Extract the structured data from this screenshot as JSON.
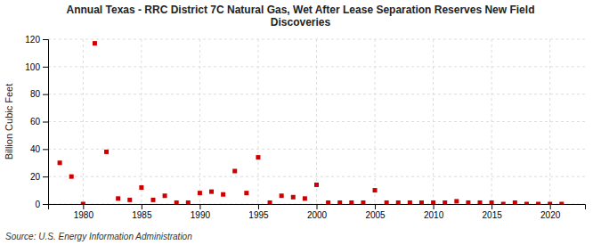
{
  "chart_data": {
    "type": "scatter",
    "title": "Annual Texas - RRC District 7C Natural Gas, Wet After Lease Separation Reserves New Field\nDiscoveries",
    "ylabel": "Billion Cubic Feet",
    "annotations": [
      "Source: U.S. Energy Information Administration"
    ],
    "x": [
      1978,
      1979,
      1980,
      1981,
      1982,
      1983,
      1984,
      1985,
      1986,
      1987,
      1988,
      1989,
      1990,
      1991,
      1992,
      1993,
      1994,
      1995,
      1996,
      1997,
      1998,
      1999,
      2000,
      2001,
      2002,
      2003,
      2004,
      2005,
      2006,
      2007,
      2008,
      2009,
      2010,
      2011,
      2012,
      2013,
      2014,
      2015,
      2016,
      2017,
      2018,
      2019,
      2020,
      2021
    ],
    "values": [
      30,
      20,
      0,
      117,
      38,
      4,
      3,
      12,
      3,
      6,
      1,
      1,
      8,
      9,
      7,
      24,
      8,
      34,
      1,
      6,
      5,
      4,
      14,
      1,
      1,
      1,
      1,
      10,
      1,
      1,
      1,
      1,
      1,
      1,
      2,
      1,
      1,
      1,
      0,
      1,
      0,
      0,
      0,
      0
    ],
    "color": "#cc0000",
    "marker": "square",
    "xlim": [
      1977,
      2023
    ],
    "ylim": [
      0,
      120
    ],
    "xticks": [
      1980,
      1985,
      1990,
      1995,
      2000,
      2005,
      2010,
      2015,
      2020
    ],
    "yticks": [
      0,
      20,
      40,
      60,
      80,
      100,
      120
    ],
    "grid": true
  }
}
